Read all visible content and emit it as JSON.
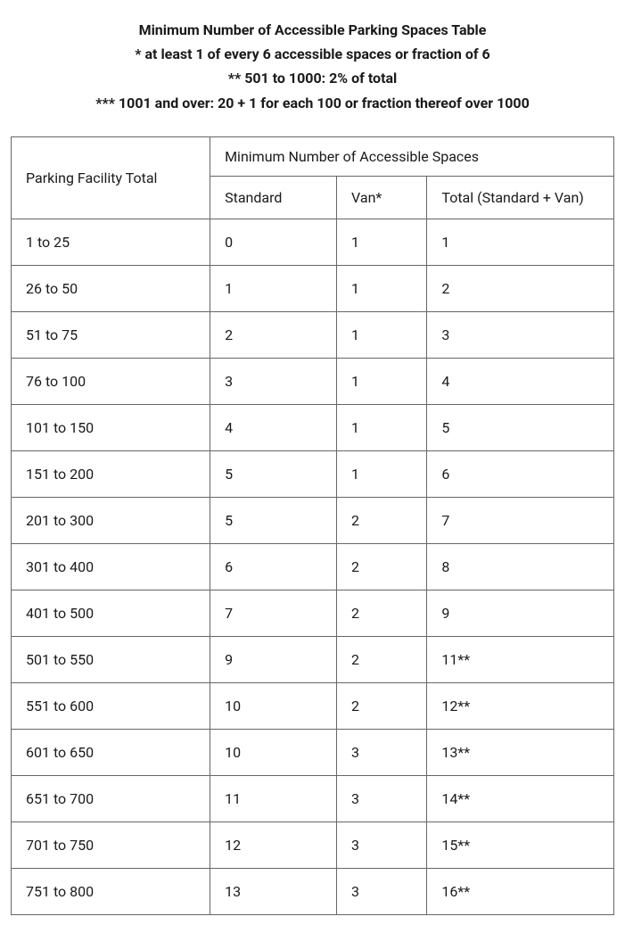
{
  "header": {
    "title": "Minimum Number of Accessible Parking Spaces Table",
    "note1": "* at least 1 of every 6 accessible spaces or fraction of 6",
    "note2": "** 501 to 1000: 2% of total",
    "note3": "*** 1001 and over: 20 + 1 for each 100 or fraction thereof over 1000"
  },
  "table": {
    "col_facility": "Parking Facility Total",
    "col_group": "Minimum Number of Accessible Spaces",
    "col_standard": "Standard",
    "col_van": "Van*",
    "col_total": "Total (Standard + Van)",
    "rows": [
      {
        "facility": "1 to 25",
        "standard": "0",
        "van": "1",
        "total": "1"
      },
      {
        "facility": "26 to 50",
        "standard": "1",
        "van": "1",
        "total": "2"
      },
      {
        "facility": "51 to 75",
        "standard": "2",
        "van": "1",
        "total": "3"
      },
      {
        "facility": "76 to 100",
        "standard": "3",
        "van": "1",
        "total": "4"
      },
      {
        "facility": "101 to 150",
        "standard": "4",
        "van": "1",
        "total": "5"
      },
      {
        "facility": "151 to 200",
        "standard": "5",
        "van": "1",
        "total": "6"
      },
      {
        "facility": "201 to 300",
        "standard": "5",
        "van": "2",
        "total": "7"
      },
      {
        "facility": "301 to 400",
        "standard": "6",
        "van": "2",
        "total": "8"
      },
      {
        "facility": "401 to 500",
        "standard": "7",
        "van": "2",
        "total": "9"
      },
      {
        "facility": "501 to 550",
        "standard": "9",
        "van": "2",
        "total": "11**"
      },
      {
        "facility": "551 to 600",
        "standard": "10",
        "van": "2",
        "total": "12**"
      },
      {
        "facility": "601 to 650",
        "standard": "10",
        "van": "3",
        "total": "13**"
      },
      {
        "facility": "651 to 700",
        "standard": "11",
        "van": "3",
        "total": "14**"
      },
      {
        "facility": "701 to 750",
        "standard": "12",
        "van": "3",
        "total": "15**"
      },
      {
        "facility": "751 to 800",
        "standard": "13",
        "van": "3",
        "total": "16**"
      }
    ]
  },
  "style": {
    "background_color": "#ffffff",
    "text_color": "#1a1a1a",
    "border_color": "#666666",
    "header_fontsize": 16,
    "header_fontweight": 700,
    "table_fontsize": 16,
    "table_fontweight": 400
  }
}
